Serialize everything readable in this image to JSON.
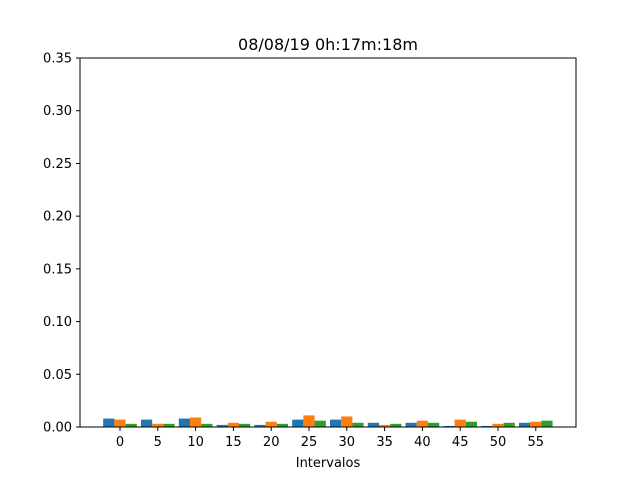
{
  "chart_data": {
    "type": "bar",
    "title": "08/08/19 0h:17m:18m",
    "xlabel": "Intervalos",
    "ylabel": "",
    "ylim": [
      0,
      0.35
    ],
    "yticks": [
      "0.00",
      "0.05",
      "0.10",
      "0.15",
      "0.20",
      "0.25",
      "0.30",
      "0.35"
    ],
    "categories": [
      "0",
      "5",
      "10",
      "15",
      "20",
      "25",
      "30",
      "35",
      "40",
      "45",
      "50",
      "55"
    ],
    "series": [
      {
        "color": "#1f77b4",
        "values": [
          0.008,
          0.007,
          0.008,
          0.002,
          0.002,
          0.007,
          0.007,
          0.004,
          0.004,
          0.001,
          0.001,
          0.004
        ]
      },
      {
        "color": "#ff7f0e",
        "values": [
          0.007,
          0.003,
          0.009,
          0.004,
          0.005,
          0.011,
          0.01,
          0.002,
          0.006,
          0.007,
          0.003,
          0.005
        ]
      },
      {
        "color": "#2ca02c",
        "values": [
          0.003,
          0.003,
          0.003,
          0.003,
          0.003,
          0.006,
          0.004,
          0.003,
          0.004,
          0.005,
          0.004,
          0.006
        ]
      }
    ],
    "grid": false,
    "legend": "none"
  }
}
